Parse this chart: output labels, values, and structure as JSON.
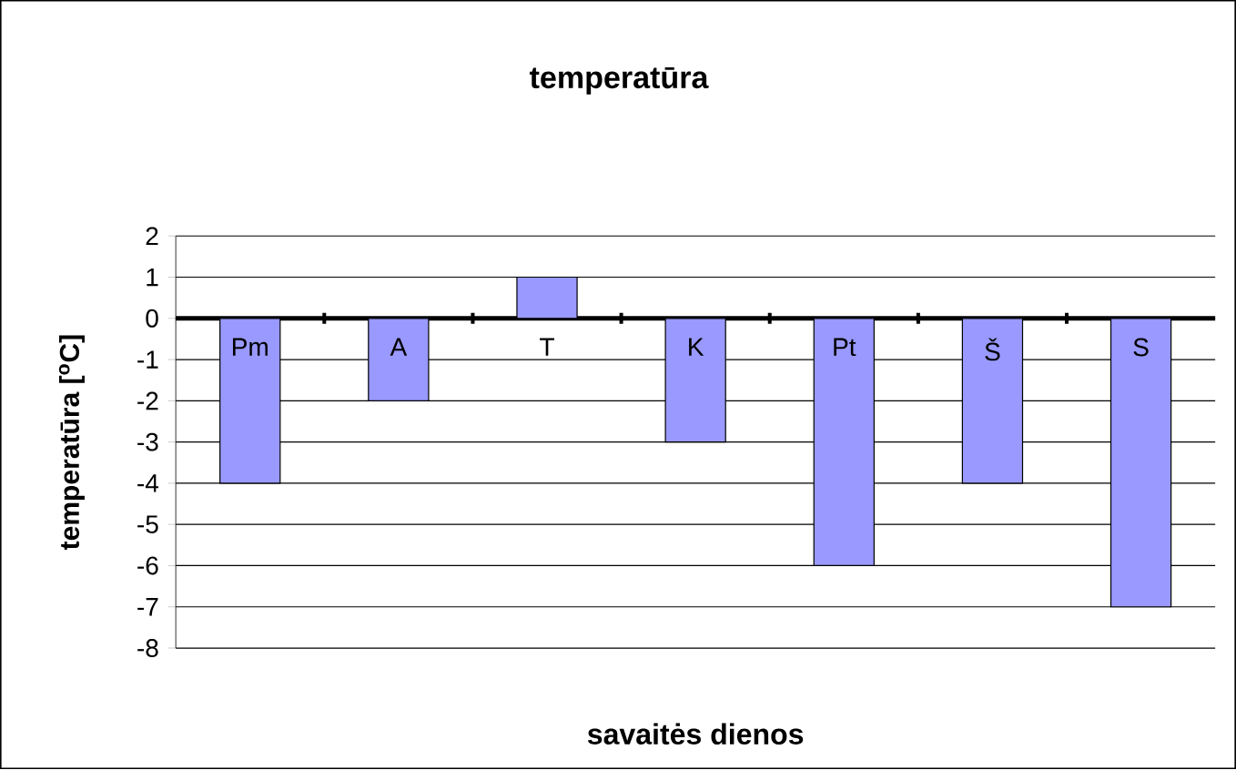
{
  "chart_data": {
    "type": "bar",
    "title": "temperatūra",
    "xlabel": "savaitės dienos",
    "ylabel": "temperatūra  [$^{o}$C]",
    "categories": [
      "Pm",
      "A",
      "T",
      "K",
      "Pt",
      "Š",
      "S"
    ],
    "values": [
      -4,
      -2,
      1,
      -3,
      -6,
      -4,
      -7
    ],
    "color": "#9999ff",
    "ylim": [
      -8,
      2
    ],
    "yticks": [
      -8,
      -7,
      -6,
      -5,
      -4,
      -3,
      -2,
      -1,
      0,
      1,
      2
    ],
    "grid": "y"
  }
}
